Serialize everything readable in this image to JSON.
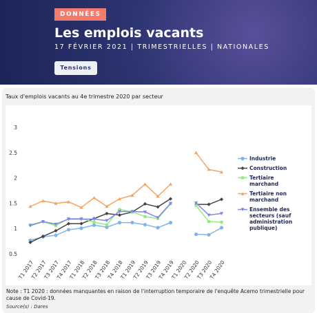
{
  "header": {
    "badge": "DONNÉES",
    "title": "Les emplois vacants",
    "subtitle": "17 FÉVRIER 2021 | TRIMESTRIELLES | NATIONALES",
    "button": "Tensions"
  },
  "chart_data": {
    "type": "line",
    "title": "Taux d'emplois vacants au 4e trimestre 2020 par secteur",
    "categories": [
      "T1 2017",
      "T2 2017",
      "T3 2017",
      "T4 2017",
      "T1 2018",
      "T2 2018",
      "T3 2018",
      "T4 2018",
      "T1 2019",
      "T2 2019",
      "T3 2019",
      "T4 2019",
      "T1 2020",
      "T2 2020",
      "T3 2020",
      "T4 2020"
    ],
    "ylim": [
      0.5,
      3
    ],
    "yticks": [
      0.5,
      1,
      1.5,
      2,
      2.5,
      3
    ],
    "grid": false,
    "series": [
      {
        "name": "Industrie",
        "color": "#7cb5ec",
        "marker": "circle",
        "values": [
          0.78,
          0.85,
          0.88,
          0.99,
          1.02,
          1.08,
          1.04,
          1.13,
          1.13,
          1.09,
          1.03,
          1.13,
          null,
          0.9,
          0.89,
          1.03
        ]
      },
      {
        "name": "Construction",
        "color": "#434348",
        "marker": "diamond",
        "values": [
          0.74,
          0.86,
          0.97,
          1.11,
          1.11,
          1.21,
          1.31,
          1.28,
          1.34,
          1.5,
          1.44,
          1.6,
          null,
          1.49,
          1.49,
          1.59
        ]
      },
      {
        "name": "Tertiaire marchand",
        "color": "#90ed7d",
        "marker": "square",
        "values": [
          1.09,
          1.15,
          1.07,
          1.21,
          1.21,
          1.14,
          1.09,
          1.39,
          1.34,
          1.25,
          1.21,
          1.5,
          null,
          1.47,
          1.15,
          1.14
        ]
      },
      {
        "name": "Tertiaire non marchand",
        "color": "#f7a35c",
        "marker": "triangle",
        "values": [
          1.45,
          1.56,
          1.51,
          1.54,
          1.43,
          1.62,
          1.45,
          1.6,
          1.67,
          1.89,
          1.65,
          1.89,
          null,
          2.51,
          2.18,
          2.13
        ]
      },
      {
        "name": "Ensemble des secteurs (sauf administration publique)",
        "color": "#8085e9",
        "marker": "triangle-down",
        "values": [
          1.07,
          1.15,
          1.1,
          1.2,
          1.2,
          1.2,
          1.17,
          1.35,
          1.35,
          1.34,
          1.23,
          1.51,
          null,
          1.52,
          1.28,
          1.31
        ]
      }
    ]
  },
  "footer": {
    "note": "Note : T1 2020 : données manquantes en raison de l'interruption temporaire de l'enquête Acemo trimestrielle pour cause de Covid-19.",
    "source": "Source(s) : Dares"
  }
}
